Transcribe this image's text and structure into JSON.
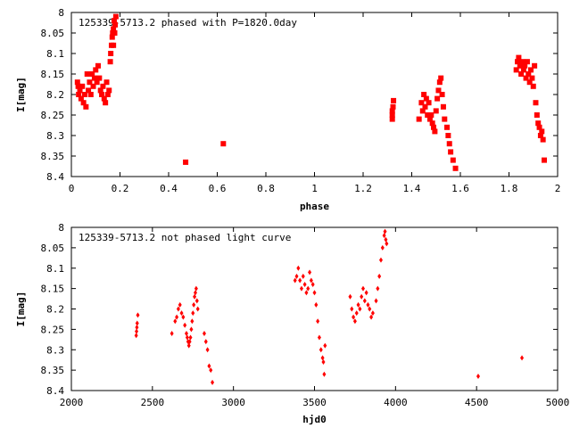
{
  "colors": {
    "series": "#ff0000",
    "axis": "#000000",
    "background": "#ffffff"
  },
  "chart_data": [
    {
      "type": "scatter",
      "annotation": "125339-5713.2 phased with P=1820.0day",
      "xlabel": "phase",
      "ylabel": "I[mag]",
      "xlim": [
        0,
        2
      ],
      "ylim": [
        8.4,
        8
      ],
      "y_inverted": true,
      "x_ticks": [
        "0",
        "0.2",
        "0.4",
        "0.6",
        "0.8",
        "1",
        "1.2",
        "1.4",
        "1.6",
        "1.8",
        "2"
      ],
      "x_tick_values": [
        0,
        0.2,
        0.4,
        0.6,
        0.8,
        1,
        1.2,
        1.4,
        1.6,
        1.8,
        2
      ],
      "y_ticks": [
        "8",
        "8.05",
        "8.1",
        "8.15",
        "8.2",
        "8.25",
        "8.3",
        "8.35",
        "8.4"
      ],
      "y_tick_values": [
        8,
        8.05,
        8.1,
        8.15,
        8.2,
        8.25,
        8.3,
        8.35,
        8.4
      ],
      "grid": false,
      "series": [
        {
          "marker": "square",
          "points": [
            [
              0.025,
              8.17
            ],
            [
              0.028,
              8.18
            ],
            [
              0.03,
              8.2
            ],
            [
              0.035,
              8.19
            ],
            [
              0.04,
              8.21
            ],
            [
              0.045,
              8.18
            ],
            [
              0.05,
              8.22
            ],
            [
              0.055,
              8.2
            ],
            [
              0.06,
              8.23
            ],
            [
              0.065,
              8.15
            ],
            [
              0.07,
              8.19
            ],
            [
              0.075,
              8.17
            ],
            [
              0.08,
              8.2
            ],
            [
              0.085,
              8.15
            ],
            [
              0.09,
              8.18
            ],
            [
              0.095,
              8.16
            ],
            [
              0.1,
              8.14
            ],
            [
              0.105,
              8.17
            ],
            [
              0.11,
              8.13
            ],
            [
              0.115,
              8.16
            ],
            [
              0.12,
              8.19
            ],
            [
              0.125,
              8.2
            ],
            [
              0.13,
              8.18
            ],
            [
              0.135,
              8.21
            ],
            [
              0.14,
              8.22
            ],
            [
              0.145,
              8.17
            ],
            [
              0.15,
              8.2
            ],
            [
              0.155,
              8.19
            ],
            [
              0.16,
              8.12
            ],
            [
              0.162,
              8.1
            ],
            [
              0.165,
              8.08
            ],
            [
              0.168,
              8.06
            ],
            [
              0.17,
              8.05
            ],
            [
              0.173,
              8.04
            ],
            [
              0.176,
              8.02
            ],
            [
              0.18,
              8.03
            ],
            [
              0.183,
              8.01
            ],
            [
              0.173,
              8.08
            ],
            [
              0.178,
              8.05
            ],
            [
              0.47,
              8.365
            ],
            [
              0.625,
              8.32
            ],
            [
              1.32,
              8.26
            ],
            [
              1.32,
              8.25
            ],
            [
              1.32,
              8.24
            ],
            [
              1.323,
              8.23
            ],
            [
              1.325,
              8.215
            ],
            [
              1.43,
              8.26
            ],
            [
              1.44,
              8.22
            ],
            [
              1.445,
              8.24
            ],
            [
              1.45,
              8.2
            ],
            [
              1.455,
              8.23
            ],
            [
              1.46,
              8.21
            ],
            [
              1.465,
              8.25
            ],
            [
              1.47,
              8.22
            ],
            [
              1.475,
              8.26
            ],
            [
              1.48,
              8.25
            ],
            [
              1.485,
              8.27
            ],
            [
              1.49,
              8.28
            ],
            [
              1.495,
              8.29
            ],
            [
              1.5,
              8.24
            ],
            [
              1.505,
              8.21
            ],
            [
              1.51,
              8.19
            ],
            [
              1.515,
              8.17
            ],
            [
              1.52,
              8.16
            ],
            [
              1.525,
              8.2
            ],
            [
              1.53,
              8.23
            ],
            [
              1.535,
              8.26
            ],
            [
              1.545,
              8.28
            ],
            [
              1.55,
              8.3
            ],
            [
              1.555,
              8.32
            ],
            [
              1.56,
              8.34
            ],
            [
              1.57,
              8.36
            ],
            [
              1.58,
              8.38
            ],
            [
              1.83,
              8.14
            ],
            [
              1.835,
              8.12
            ],
            [
              1.84,
              8.11
            ],
            [
              1.845,
              8.13
            ],
            [
              1.85,
              8.15
            ],
            [
              1.855,
              8.12
            ],
            [
              1.86,
              8.14
            ],
            [
              1.865,
              8.13
            ],
            [
              1.87,
              8.16
            ],
            [
              1.875,
              8.12
            ],
            [
              1.88,
              8.15
            ],
            [
              1.885,
              8.17
            ],
            [
              1.89,
              8.14
            ],
            [
              1.895,
              8.16
            ],
            [
              1.9,
              8.18
            ],
            [
              1.905,
              8.13
            ],
            [
              1.91,
              8.22
            ],
            [
              1.915,
              8.25
            ],
            [
              1.92,
              8.27
            ],
            [
              1.925,
              8.28
            ],
            [
              1.93,
              8.3
            ],
            [
              1.935,
              8.29
            ],
            [
              1.94,
              8.31
            ],
            [
              1.945,
              8.36
            ]
          ]
        }
      ]
    },
    {
      "type": "scatter",
      "annotation": "125339-5713.2 not phased light curve",
      "xlabel": "hjd0",
      "ylabel": "I[mag]",
      "xlim": [
        2000,
        5000
      ],
      "ylim": [
        8.4,
        8
      ],
      "y_inverted": true,
      "x_ticks": [
        "2000",
        "2500",
        "3000",
        "3500",
        "4000",
        "4500",
        "5000"
      ],
      "x_tick_values": [
        2000,
        2500,
        3000,
        3500,
        4000,
        4500,
        5000
      ],
      "y_ticks": [
        "8",
        "8.05",
        "8.1",
        "8.15",
        "8.2",
        "8.25",
        "8.3",
        "8.35",
        "8.4"
      ],
      "y_tick_values": [
        8,
        8.05,
        8.1,
        8.15,
        8.2,
        8.25,
        8.3,
        8.35,
        8.4
      ],
      "grid": false,
      "series": [
        {
          "marker": "diamond",
          "points": [
            [
              2400,
              8.265
            ],
            [
              2402,
              8.255
            ],
            [
              2404,
              8.245
            ],
            [
              2406,
              8.235
            ],
            [
              2410,
              8.215
            ],
            [
              2620,
              8.26
            ],
            [
              2640,
              8.23
            ],
            [
              2650,
              8.22
            ],
            [
              2660,
              8.2
            ],
            [
              2670,
              8.19
            ],
            [
              2680,
              8.21
            ],
            [
              2690,
              8.22
            ],
            [
              2700,
              8.24
            ],
            [
              2710,
              8.26
            ],
            [
              2715,
              8.27
            ],
            [
              2720,
              8.28
            ],
            [
              2725,
              8.29
            ],
            [
              2730,
              8.28
            ],
            [
              2735,
              8.27
            ],
            [
              2740,
              8.25
            ],
            [
              2745,
              8.23
            ],
            [
              2750,
              8.21
            ],
            [
              2755,
              8.19
            ],
            [
              2760,
              8.17
            ],
            [
              2765,
              8.16
            ],
            [
              2770,
              8.15
            ],
            [
              2775,
              8.18
            ],
            [
              2780,
              8.2
            ],
            [
              2820,
              8.26
            ],
            [
              2830,
              8.28
            ],
            [
              2840,
              8.3
            ],
            [
              2850,
              8.34
            ],
            [
              2860,
              8.35
            ],
            [
              2870,
              8.38
            ],
            [
              3380,
              8.13
            ],
            [
              3390,
              8.12
            ],
            [
              3400,
              8.1
            ],
            [
              3410,
              8.13
            ],
            [
              3420,
              8.15
            ],
            [
              3430,
              8.12
            ],
            [
              3440,
              8.14
            ],
            [
              3450,
              8.16
            ],
            [
              3460,
              8.15
            ],
            [
              3470,
              8.11
            ],
            [
              3480,
              8.13
            ],
            [
              3490,
              8.14
            ],
            [
              3500,
              8.16
            ],
            [
              3510,
              8.19
            ],
            [
              3520,
              8.23
            ],
            [
              3530,
              8.27
            ],
            [
              3540,
              8.3
            ],
            [
              3550,
              8.32
            ],
            [
              3555,
              8.33
            ],
            [
              3560,
              8.36
            ],
            [
              3565,
              8.29
            ],
            [
              3720,
              8.17
            ],
            [
              3730,
              8.2
            ],
            [
              3740,
              8.22
            ],
            [
              3750,
              8.23
            ],
            [
              3760,
              8.21
            ],
            [
              3770,
              8.19
            ],
            [
              3780,
              8.2
            ],
            [
              3790,
              8.17
            ],
            [
              3800,
              8.15
            ],
            [
              3810,
              8.18
            ],
            [
              3820,
              8.16
            ],
            [
              3830,
              8.19
            ],
            [
              3840,
              8.2
            ],
            [
              3850,
              8.22
            ],
            [
              3860,
              8.21
            ],
            [
              3880,
              8.18
            ],
            [
              3890,
              8.15
            ],
            [
              3900,
              8.12
            ],
            [
              3910,
              8.08
            ],
            [
              3920,
              8.05
            ],
            [
              3930,
              8.02
            ],
            [
              3935,
              8.01
            ],
            [
              3940,
              8.03
            ],
            [
              3945,
              8.04
            ],
            [
              4510,
              8.365
            ],
            [
              4780,
              8.32
            ]
          ]
        }
      ]
    }
  ]
}
